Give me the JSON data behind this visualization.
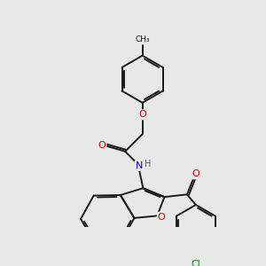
{
  "bg_color": "#e8e8e8",
  "bond_color": "#1a1a1a",
  "bond_width": 1.4,
  "dpi": 100,
  "figsize": [
    3.0,
    3.0
  ],
  "atom_colors": {
    "O": "#cc0000",
    "N": "#0000cc",
    "Cl": "#228B22",
    "C": "#1a1a1a",
    "H": "#555555"
  }
}
